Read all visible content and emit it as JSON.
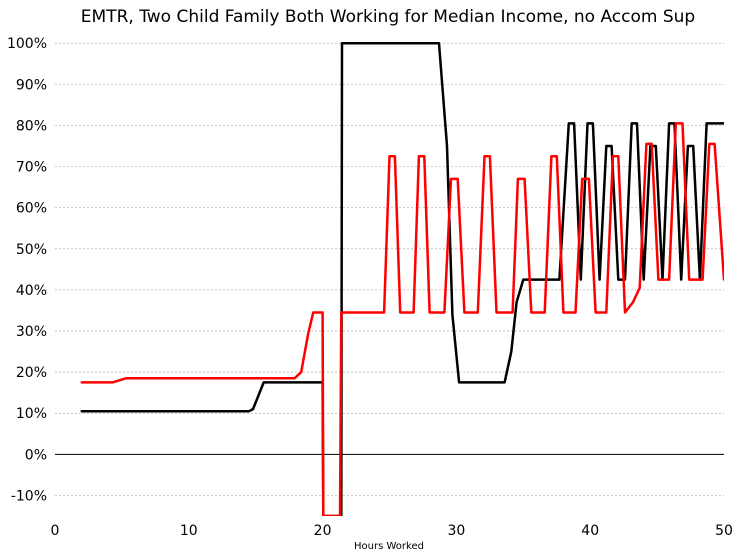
{
  "chart_data": {
    "type": "line",
    "title": "EMTR, Two Child Family Both Working for Median Income, no Accom Sup",
    "xlabel": "Hours Worked",
    "ylabel": "",
    "xlim": [
      0,
      50
    ],
    "ylim": [
      -15,
      102
    ],
    "grid": true,
    "x_ticks": [
      0,
      10,
      20,
      30,
      40,
      50
    ],
    "x_tick_labels": [
      "0",
      "10",
      "20",
      "30",
      "40",
      "50"
    ],
    "y_ticks": [
      -10,
      0,
      10,
      20,
      30,
      40,
      50,
      60,
      70,
      80,
      90,
      100
    ],
    "y_tick_labels": [
      "-10%",
      "0%",
      "10%",
      "20%",
      "30%",
      "40%",
      "50%",
      "60%",
      "70%",
      "80%",
      "90%",
      "100%"
    ],
    "series": [
      {
        "color": "#000000",
        "points": [
          [
            2,
            10.5
          ],
          [
            14.5,
            10.5
          ],
          [
            14.8,
            11
          ],
          [
            15.6,
            17.5
          ],
          [
            20,
            17.5
          ],
          [
            20.05,
            -15
          ],
          [
            21.4,
            -15
          ],
          [
            21.45,
            100
          ],
          [
            28.7,
            100
          ],
          [
            29.3,
            75
          ],
          [
            29.7,
            34
          ],
          [
            30.2,
            17.5
          ],
          [
            33.6,
            17.5
          ],
          [
            34.1,
            25
          ],
          [
            34.5,
            37
          ],
          [
            35,
            42.5
          ],
          [
            37.7,
            42.5
          ],
          [
            38.4,
            80.5
          ],
          [
            38.8,
            80.5
          ],
          [
            39.3,
            42.5
          ],
          [
            39.8,
            80.5
          ],
          [
            40.2,
            80.5
          ],
          [
            40.7,
            42.5
          ],
          [
            41.2,
            75
          ],
          [
            41.6,
            75
          ],
          [
            42.1,
            42.5
          ],
          [
            42.6,
            42.5
          ],
          [
            43.1,
            80.5
          ],
          [
            43.5,
            80.5
          ],
          [
            44,
            42.5
          ],
          [
            44.5,
            75
          ],
          [
            44.9,
            75
          ],
          [
            45.4,
            42.5
          ],
          [
            45.9,
            80.5
          ],
          [
            46.3,
            80.5
          ],
          [
            46.8,
            42.5
          ],
          [
            47.3,
            75
          ],
          [
            47.7,
            75
          ],
          [
            48.2,
            42.5
          ],
          [
            48.7,
            80.5
          ],
          [
            50,
            80.5
          ]
        ]
      },
      {
        "color": "#ff0000",
        "points": [
          [
            2,
            17.5
          ],
          [
            4.3,
            17.5
          ],
          [
            5.3,
            18.5
          ],
          [
            17.9,
            18.5
          ],
          [
            18.4,
            20
          ],
          [
            18.9,
            29
          ],
          [
            19.3,
            34.5
          ],
          [
            20,
            34.5
          ],
          [
            20.05,
            -15
          ],
          [
            21.3,
            -15
          ],
          [
            21.4,
            34.5
          ],
          [
            24.6,
            34.5
          ],
          [
            25,
            72.5
          ],
          [
            25.4,
            72.5
          ],
          [
            25.8,
            34.5
          ],
          [
            26.8,
            34.5
          ],
          [
            27.2,
            72.5
          ],
          [
            27.6,
            72.5
          ],
          [
            28,
            34.5
          ],
          [
            29.1,
            34.5
          ],
          [
            29.6,
            67
          ],
          [
            30.1,
            67
          ],
          [
            30.6,
            34.5
          ],
          [
            31.6,
            34.5
          ],
          [
            32.1,
            72.5
          ],
          [
            32.5,
            72.5
          ],
          [
            33,
            34.5
          ],
          [
            34.2,
            34.5
          ],
          [
            34.6,
            67
          ],
          [
            35.1,
            67
          ],
          [
            35.6,
            34.5
          ],
          [
            36.6,
            34.5
          ],
          [
            37.1,
            72.5
          ],
          [
            37.5,
            72.5
          ],
          [
            38,
            34.5
          ],
          [
            38.9,
            34.5
          ],
          [
            39.4,
            67
          ],
          [
            39.9,
            67
          ],
          [
            40.4,
            34.5
          ],
          [
            41.2,
            34.5
          ],
          [
            41.7,
            72.5
          ],
          [
            42.1,
            72.5
          ],
          [
            42.6,
            34.5
          ],
          [
            43.2,
            37
          ],
          [
            43.7,
            40.5
          ],
          [
            44.2,
            75.5
          ],
          [
            44.6,
            75.5
          ],
          [
            45.1,
            42.5
          ],
          [
            45.9,
            42.5
          ],
          [
            46.4,
            80.5
          ],
          [
            46.9,
            80.5
          ],
          [
            47.4,
            42.5
          ],
          [
            48.4,
            42.5
          ],
          [
            48.9,
            75.5
          ],
          [
            49.3,
            75.5
          ],
          [
            50,
            42.5
          ]
        ]
      }
    ]
  }
}
